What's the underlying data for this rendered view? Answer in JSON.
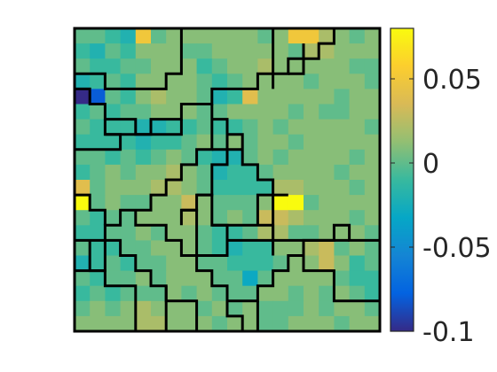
{
  "chart_data": {
    "type": "heatmap",
    "title": "",
    "xlabel": "",
    "ylabel": "",
    "grid": false,
    "axes_ticks_visible": false,
    "grid_size": [
      20,
      20
    ],
    "value_range": [
      -0.1,
      0.08
    ],
    "colormap": "parula",
    "colormap_stops": [
      "#352a87",
      "#0363e1",
      "#1485d4",
      "#06a7c6",
      "#38b99e",
      "#92bf73",
      "#d9ba56",
      "#fcce2e",
      "#f9fb0e"
    ],
    "colorbar": {
      "range": [
        -0.1,
        0.08
      ],
      "ticks": [
        {
          "value": 0.05,
          "label": "0.05"
        },
        {
          "value": 0,
          "label": "0"
        },
        {
          "value": -0.05,
          "label": "-0.05"
        },
        {
          "value": -0.1,
          "label": "-0.1"
        }
      ]
    },
    "values": [
      [
        0.0,
        0.0,
        -0.01,
        -0.02,
        0.05,
        0.0,
        0.01,
        0.01,
        0.01,
        0.01,
        0.01,
        0.01,
        0.0,
        0.01,
        0.05,
        0.05,
        0.02,
        0.01,
        0.0,
        0.01
      ],
      [
        -0.01,
        -0.02,
        0.0,
        -0.01,
        0.01,
        0.01,
        0.01,
        0.0,
        0.0,
        0.01,
        0.01,
        0.01,
        0.01,
        0.01,
        0.0,
        0.02,
        0.02,
        0.01,
        0.01,
        0.01
      ],
      [
        0.0,
        -0.01,
        -0.01,
        0.0,
        0.0,
        0.01,
        0.01,
        0.01,
        -0.01,
        0.0,
        0.01,
        0.01,
        0.02,
        0.01,
        0.01,
        0.01,
        0.01,
        0.01,
        0.0,
        0.0
      ],
      [
        -0.02,
        -0.01,
        0.0,
        -0.01,
        0.01,
        0.01,
        0.01,
        0.01,
        0.0,
        -0.01,
        0.0,
        0.01,
        0.01,
        0.01,
        0.01,
        0.0,
        0.01,
        0.01,
        0.01,
        0.0
      ],
      [
        -0.1,
        -0.08,
        0.0,
        -0.01,
        0.01,
        0.02,
        0.01,
        0.01,
        0.0,
        -0.02,
        -0.01,
        0.04,
        0.01,
        0.01,
        0.01,
        0.01,
        0.01,
        0.0,
        0.01,
        0.01
      ],
      [
        -0.01,
        0.0,
        -0.01,
        0.0,
        0.0,
        0.01,
        0.01,
        0.01,
        0.0,
        0.0,
        0.01,
        0.01,
        0.01,
        0.01,
        0.0,
        0.01,
        0.0,
        0.0,
        0.01,
        0.01
      ],
      [
        0.0,
        -0.01,
        -0.01,
        -0.01,
        -0.02,
        -0.02,
        -0.01,
        -0.01,
        0.0,
        -0.01,
        -0.01,
        0.0,
        0.01,
        0.0,
        0.01,
        0.01,
        0.01,
        0.01,
        0.01,
        0.0
      ],
      [
        -0.01,
        -0.01,
        -0.01,
        -0.01,
        -0.02,
        -0.01,
        -0.01,
        0.0,
        0.01,
        0.0,
        0.01,
        0.0,
        0.01,
        0.01,
        0.0,
        0.01,
        0.01,
        0.01,
        0.01,
        0.01
      ],
      [
        0.0,
        0.0,
        -0.01,
        0.0,
        -0.01,
        0.0,
        0.01,
        0.0,
        -0.01,
        -0.02,
        -0.02,
        0.0,
        0.01,
        0.0,
        0.01,
        0.01,
        0.01,
        0.01,
        0.0,
        0.01
      ],
      [
        -0.01,
        0.0,
        0.01,
        0.0,
        0.01,
        0.01,
        0.02,
        0.01,
        0.0,
        -0.02,
        -0.01,
        -0.01,
        0.0,
        0.01,
        0.01,
        0.01,
        0.01,
        0.0,
        0.01,
        0.01
      ],
      [
        0.04,
        0.0,
        0.01,
        0.01,
        0.01,
        0.02,
        0.02,
        0.01,
        0.0,
        -0.01,
        -0.01,
        -0.01,
        -0.01,
        0.02,
        0.02,
        0.01,
        0.01,
        0.01,
        0.0,
        0.01
      ],
      [
        0.08,
        0.0,
        0.01,
        0.0,
        0.0,
        0.01,
        0.01,
        0.03,
        0.01,
        0.0,
        0.0,
        0.0,
        0.01,
        0.08,
        0.08,
        0.0,
        0.01,
        0.01,
        0.01,
        0.01
      ],
      [
        0.0,
        -0.01,
        0.0,
        0.0,
        0.01,
        0.01,
        0.01,
        0.02,
        0.01,
        0.0,
        0.01,
        0.0,
        0.03,
        0.03,
        0.02,
        0.01,
        0.01,
        0.01,
        0.0,
        0.01
      ],
      [
        -0.01,
        -0.01,
        0.0,
        0.0,
        0.01,
        0.0,
        0.01,
        0.01,
        0.0,
        -0.01,
        -0.01,
        0.0,
        0.02,
        0.02,
        0.0,
        0.0,
        0.01,
        0.01,
        0.01,
        0.0
      ],
      [
        0.0,
        -0.01,
        -0.01,
        0.0,
        0.0,
        0.01,
        0.01,
        0.01,
        0.0,
        -0.01,
        -0.02,
        -0.01,
        -0.01,
        0.01,
        0.01,
        0.02,
        0.03,
        0.0,
        0.01,
        0.0
      ],
      [
        -0.02,
        -0.01,
        0.0,
        -0.01,
        0.0,
        0.0,
        0.01,
        0.01,
        0.0,
        0.0,
        -0.01,
        -0.01,
        -0.01,
        0.0,
        0.01,
        0.01,
        0.03,
        0.01,
        -0.01,
        0.0
      ],
      [
        0.0,
        -0.01,
        0.0,
        0.0,
        0.01,
        0.0,
        0.01,
        0.01,
        0.01,
        0.0,
        0.0,
        -0.03,
        0.0,
        0.01,
        0.01,
        0.01,
        0.01,
        0.0,
        -0.01,
        -0.01
      ],
      [
        -0.01,
        0.0,
        -0.01,
        0.0,
        0.0,
        0.0,
        0.01,
        0.0,
        0.01,
        0.0,
        0.0,
        0.0,
        0.01,
        0.01,
        0.0,
        0.01,
        0.0,
        0.01,
        0.0,
        -0.01
      ],
      [
        0.0,
        0.01,
        0.0,
        0.01,
        0.02,
        0.01,
        0.01,
        0.01,
        0.0,
        0.01,
        0.0,
        0.01,
        0.0,
        0.0,
        0.0,
        0.01,
        0.0,
        0.01,
        0.01,
        0.0
      ],
      [
        0.01,
        0.01,
        0.01,
        0.01,
        0.02,
        0.02,
        0.01,
        0.01,
        0.01,
        0.0,
        0.01,
        0.01,
        0.0,
        0.0,
        0.01,
        0.01,
        0.01,
        0.0,
        0.01,
        0.01
      ]
    ],
    "region_boundaries": [
      [
        [
          0,
          4
        ],
        [
          1,
          4
        ],
        [
          1,
          5
        ],
        [
          2,
          5
        ],
        [
          2,
          6
        ],
        [
          4,
          6
        ],
        [
          4,
          7
        ],
        [
          5,
          7
        ],
        [
          5,
          6
        ],
        [
          7,
          6
        ],
        [
          7,
          5
        ],
        [
          9,
          5
        ],
        [
          9,
          4
        ],
        [
          12,
          4
        ],
        [
          12,
          3
        ],
        [
          14,
          3
        ],
        [
          14,
          2
        ],
        [
          16,
          2
        ],
        [
          16,
          1
        ],
        [
          17,
          1
        ],
        [
          17,
          0
        ]
      ],
      [
        [
          0,
          3
        ],
        [
          2,
          3
        ],
        [
          2,
          4
        ],
        [
          6,
          4
        ],
        [
          6,
          3
        ],
        [
          7,
          3
        ],
        [
          7,
          0
        ]
      ],
      [
        [
          13,
          0
        ],
        [
          13,
          4
        ]
      ],
      [
        [
          15,
          1
        ],
        [
          15,
          3
        ],
        [
          14,
          3
        ]
      ],
      [
        [
          2,
          6
        ],
        [
          2,
          7
        ],
        [
          3,
          7
        ],
        [
          3,
          8
        ],
        [
          0,
          8
        ]
      ],
      [
        [
          2,
          7
        ],
        [
          7,
          7
        ],
        [
          7,
          6
        ]
      ],
      [
        [
          9,
          5
        ],
        [
          9,
          8
        ],
        [
          8,
          8
        ],
        [
          8,
          9
        ],
        [
          7,
          9
        ],
        [
          7,
          10
        ],
        [
          6,
          10
        ],
        [
          6,
          11
        ],
        [
          5,
          11
        ],
        [
          5,
          12
        ],
        [
          3,
          12
        ],
        [
          3,
          13
        ],
        [
          2,
          13
        ],
        [
          2,
          16
        ],
        [
          0,
          16
        ]
      ],
      [
        [
          9,
          6
        ],
        [
          10,
          6
        ],
        [
          10,
          7
        ],
        [
          11,
          7
        ],
        [
          11,
          9
        ],
        [
          12,
          9
        ],
        [
          12,
          10
        ],
        [
          13,
          10
        ],
        [
          13,
          11
        ],
        [
          14,
          11
        ]
      ],
      [
        [
          9,
          8
        ],
        [
          11,
          8
        ]
      ],
      [
        [
          10,
          6
        ],
        [
          10,
          9
        ],
        [
          9,
          9
        ],
        [
          9,
          11
        ],
        [
          8,
          11
        ],
        [
          8,
          12
        ],
        [
          7,
          12
        ],
        [
          7,
          13
        ]
      ],
      [
        [
          8,
          11
        ],
        [
          9,
          11
        ],
        [
          9,
          13
        ],
        [
          10,
          13
        ],
        [
          10,
          14
        ],
        [
          13,
          14
        ],
        [
          13,
          15
        ]
      ],
      [
        [
          9,
          13
        ],
        [
          13,
          13
        ],
        [
          13,
          14
        ]
      ],
      [
        [
          7,
          12
        ],
        [
          8,
          12
        ],
        [
          8,
          15
        ],
        [
          10,
          15
        ],
        [
          10,
          14
        ]
      ],
      [
        [
          0,
          11
        ],
        [
          1,
          11
        ],
        [
          1,
          12
        ],
        [
          2,
          12
        ],
        [
          2,
          13
        ]
      ],
      [
        [
          4,
          12
        ],
        [
          4,
          13
        ],
        [
          6,
          13
        ],
        [
          6,
          14
        ],
        [
          7,
          14
        ],
        [
          7,
          15
        ],
        [
          8,
          15
        ],
        [
          8,
          16
        ],
        [
          9,
          16
        ],
        [
          9,
          17
        ],
        [
          10,
          17
        ],
        [
          10,
          18
        ],
        [
          12,
          18
        ],
        [
          12,
          17
        ],
        [
          13,
          17
        ],
        [
          13,
          16
        ],
        [
          14,
          16
        ],
        [
          14,
          15
        ],
        [
          15,
          15
        ],
        [
          15,
          14
        ],
        [
          18,
          14
        ]
      ],
      [
        [
          12,
          13
        ],
        [
          12,
          11
        ],
        [
          13,
          11
        ],
        [
          13,
          14
        ]
      ],
      [
        [
          13,
          14
        ],
        [
          17,
          14
        ],
        [
          17,
          13
        ],
        [
          18,
          13
        ],
        [
          18,
          14
        ],
        [
          20,
          14
        ]
      ],
      [
        [
          0,
          14
        ],
        [
          3,
          14
        ],
        [
          3,
          15
        ],
        [
          4,
          15
        ],
        [
          4,
          16
        ],
        [
          5,
          16
        ],
        [
          5,
          17
        ],
        [
          6,
          17
        ],
        [
          6,
          18
        ],
        [
          8,
          18
        ],
        [
          8,
          20
        ]
      ],
      [
        [
          1,
          14
        ],
        [
          1,
          16
        ],
        [
          2,
          16
        ],
        [
          2,
          17
        ],
        [
          4,
          17
        ],
        [
          4,
          20
        ]
      ],
      [
        [
          6,
          17
        ],
        [
          6,
          20
        ]
      ],
      [
        [
          10,
          18
        ],
        [
          10,
          19
        ],
        [
          11,
          19
        ],
        [
          11,
          20
        ]
      ],
      [
        [
          12,
          18
        ],
        [
          12,
          20
        ]
      ],
      [
        [
          15,
          15
        ],
        [
          15,
          16
        ],
        [
          17,
          16
        ],
        [
          17,
          18
        ],
        [
          20,
          18
        ]
      ]
    ]
  }
}
